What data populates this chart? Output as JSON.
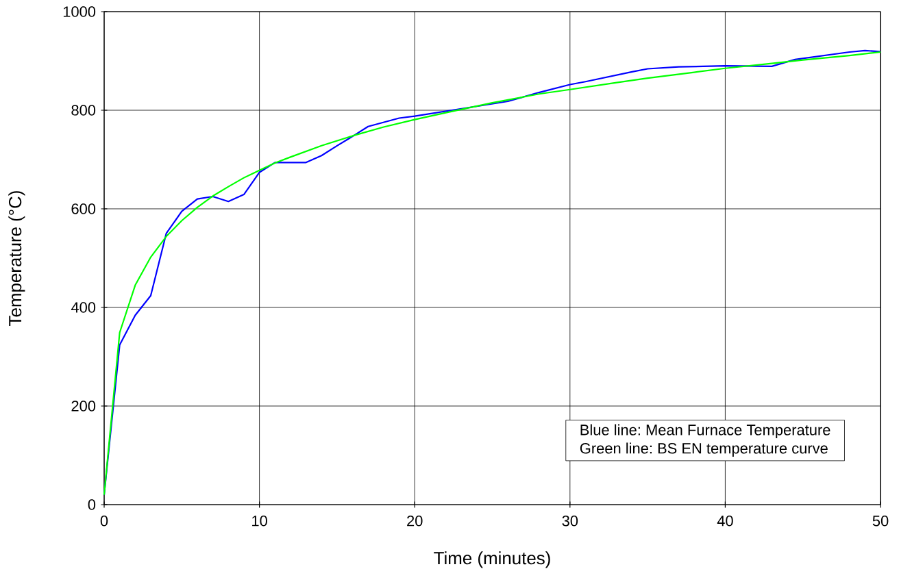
{
  "chart_data": {
    "type": "line",
    "xlabel": "Time (minutes)",
    "ylabel": "Temperature (°C)",
    "xlim": [
      0,
      50
    ],
    "xticks": [
      0,
      10,
      20,
      30,
      40,
      50
    ],
    "ylim": [
      0,
      1000
    ],
    "yticks": [
      0,
      200,
      400,
      600,
      800,
      1000
    ],
    "grid": true,
    "marker": "none",
    "line_style": "solid",
    "series": [
      {
        "color": "#0000ff",
        "x": [
          0,
          1,
          2,
          3,
          4,
          5,
          6,
          7,
          8,
          9,
          10,
          11,
          13,
          14,
          15,
          16,
          17,
          19,
          20,
          22,
          24,
          26,
          27,
          28,
          30,
          31,
          34,
          35,
          37,
          40,
          43,
          44.5,
          48,
          49,
          50
        ],
        "values": [
          20,
          324,
          384,
          424,
          550,
          595,
          620,
          625,
          615,
          629,
          674,
          694,
          694,
          708,
          728,
          747,
          767,
          784,
          788,
          798,
          808,
          818,
          827,
          836,
          852,
          858,
          878,
          884,
          888,
          890,
          889,
          903,
          918,
          921,
          919
        ]
      },
      {
        "color": "#00ff00",
        "x": [
          0,
          1,
          2,
          3,
          4,
          5,
          6,
          7,
          8,
          9,
          10,
          11,
          12,
          14,
          16,
          18,
          20,
          22,
          25,
          28,
          30,
          33,
          35,
          38,
          40,
          43,
          45,
          48,
          50
        ],
        "values": [
          20,
          349,
          445,
          502,
          544,
          576,
          603,
          626,
          645,
          663,
          678,
          693,
          705,
          728,
          748,
          766,
          781,
          795,
          815,
          833,
          842,
          856,
          865,
          877,
          885,
          895,
          902,
          911,
          918
        ]
      }
    ],
    "annotations": [
      "Blue line: Mean Furnace Temperature",
      "Green line: BS EN temperature curve"
    ]
  }
}
